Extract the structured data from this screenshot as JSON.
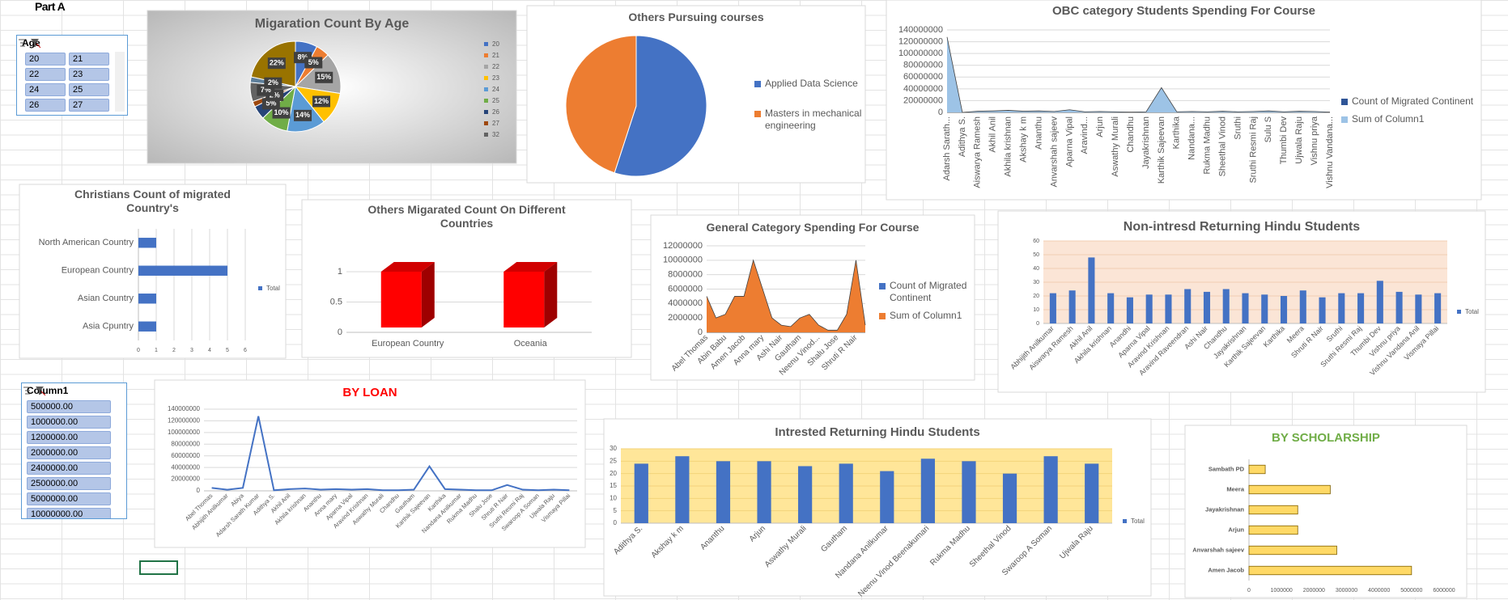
{
  "sheet_label": "Part A",
  "slicers": [
    {
      "title": "Age",
      "items": [
        "20",
        "21",
        "22",
        "23",
        "24",
        "25",
        "26",
        "27"
      ]
    },
    {
      "title": "Column1",
      "items": [
        "500000.00",
        "1000000.00",
        "1200000.00",
        "2000000.00",
        "2400000.00",
        "2500000.00",
        "5000000.00",
        "10000000.00"
      ]
    }
  ],
  "chart_data": [
    {
      "type": "pie",
      "title": "Migaration Count By Age",
      "categories": [
        "20",
        "21",
        "22",
        "23",
        "24",
        "25",
        "26",
        "27",
        "32",
        null,
        null
      ],
      "values": [
        8,
        5,
        15,
        12,
        14,
        10,
        5,
        2,
        7,
        2,
        22
      ],
      "value_labels": [
        "8%",
        "5%",
        "15%",
        "12%",
        "14%",
        "10%",
        "5%",
        "2%",
        "7%",
        "2%",
        "22%"
      ],
      "colors": [
        "#4472c4",
        "#ed7d31",
        "#a5a5a5",
        "#ffc000",
        "#5b9bd5",
        "#70ad47",
        "#264478",
        "#9e480e",
        "#636363",
        "#5e7f9b",
        "#997300"
      ],
      "legend": "right"
    },
    {
      "type": "pie",
      "title": "Others Pursuing courses",
      "categories": [
        "Applied Data Science",
        "Masters in mechanical engineering"
      ],
      "values": [
        55,
        45
      ],
      "colors": [
        "#4472c4",
        "#ed7d31"
      ],
      "legend": "right"
    },
    {
      "type": "area",
      "title": "OBC category Students Spending For Course",
      "categories": [
        "Adarsh Sarath...",
        "Adithya S.",
        "Aiswarya Ramesh",
        "Akhil Anil",
        "Akhila krishnan",
        "Akshay k m",
        "Ananthu",
        "Anvarshah sajeev",
        "Aparna Vipal",
        "Aravind...",
        "Arjun",
        "Aswathy Murali",
        "Chandhu",
        "Jayakrishnan",
        "Karthik Sajeevan",
        "Karthika",
        "Nandana...",
        "Rukma Madhu",
        "Sheethal Vinod",
        "Sruthi",
        "Sruthi Resmi Raj",
        "Sulu S",
        "Thumbi Dev",
        "Ujwala Raju",
        "Vishnu priya",
        "Vishnu Vandana..."
      ],
      "series": [
        {
          "name": "Count of Migrated Continent",
          "color": "#2f5597",
          "values": [
            1,
            1,
            1,
            1,
            1,
            1,
            1,
            1,
            1,
            1,
            1,
            1,
            1,
            1,
            1,
            1,
            1,
            1,
            1,
            1,
            1,
            1,
            1,
            1,
            1,
            1
          ]
        },
        {
          "name": "Sum of Column1",
          "color": "#9dc3e6",
          "values": [
            128000000,
            0,
            2000000,
            2500000,
            3500000,
            2000000,
            2500000,
            1500000,
            4500000,
            1000000,
            1500000,
            1000000,
            500000,
            1000000,
            42000000,
            1000000,
            1500000,
            1000000,
            2000000,
            1000000,
            1500000,
            2500000,
            1000000,
            2000000,
            1500000,
            500000
          ]
        }
      ],
      "ylim": [
        0,
        140000000
      ],
      "yticks": [
        0,
        20000000,
        40000000,
        60000000,
        80000000,
        100000000,
        120000000,
        140000000
      ],
      "grid": true,
      "legend": "right"
    },
    {
      "type": "bar",
      "orientation": "horizontal",
      "title": "Christians Count of migrated Country's",
      "categories": [
        "North American Country",
        "European Country",
        "Asian Country",
        "Asia Cpuntry"
      ],
      "series": [
        {
          "name": "Total",
          "color": "#4472c4",
          "values": [
            1,
            5,
            1,
            1
          ]
        }
      ],
      "xlim": [
        0,
        6
      ],
      "xticks": [
        0,
        1,
        2,
        3,
        4,
        5,
        6
      ],
      "grid": true,
      "legend": "right"
    },
    {
      "type": "bar3d",
      "title": "Others Migarated Count On Different Countries",
      "categories": [
        "European Country",
        "Oceania"
      ],
      "values": [
        1,
        1
      ],
      "color": "#ff0000",
      "ylim": [
        0,
        1.4
      ],
      "yticks": [
        0,
        0.5,
        1
      ],
      "grid": true
    },
    {
      "type": "area",
      "title": "General Category Spending For Course",
      "categories": [
        "Abel Thomas",
        null,
        "Abin Babu",
        null,
        "Amen Jacob",
        null,
        "Anna mary",
        null,
        "Ashi Nair",
        null,
        "Gautham",
        null,
        "Neenu Vinod...",
        null,
        "Shalu Jose",
        null,
        "Shruti R Nair",
        null
      ],
      "series": [
        {
          "name": "Count of Migrated Continent",
          "color": "#4472c4",
          "values": [
            1,
            1,
            1,
            1,
            1,
            1,
            1,
            1,
            1,
            1,
            1,
            1,
            1,
            1,
            1,
            1,
            1,
            1
          ]
        },
        {
          "name": "Sum of Column1",
          "color": "#ed7d31",
          "values": [
            5000000,
            2000000,
            2500000,
            5000000,
            5000000,
            10000000,
            6000000,
            2000000,
            1000000,
            800000,
            2000000,
            2500000,
            1000000,
            300000,
            300000,
            2500000,
            10000000,
            1000000
          ]
        }
      ],
      "ylim": [
        0,
        12000000
      ],
      "yticks": [
        0,
        2000000,
        4000000,
        6000000,
        8000000,
        10000000,
        12000000
      ],
      "grid": true,
      "legend": "right"
    },
    {
      "type": "bar",
      "title": "Non-intresd Returning Hindu Students",
      "categories": [
        "Abhijith Anilkumar",
        "Aiswarya Ramesh",
        "Akhil Anil",
        "Akhila krishnan",
        "Anandhi",
        "Aparna Vipal",
        "Aravind Krishnan",
        "Aravind Raveendran",
        "Ashi Nair",
        "Chandhu",
        "Jayakrishnan",
        "Karthik Sajeevan",
        "Karthika",
        "Meera",
        "Shruti R Nair",
        "Sruthi",
        "Sruthi Resmi Raj",
        "Thumbi Dev",
        "Vishnu priya",
        "Vishnu Vandana Anil",
        "Vismaya Pillai"
      ],
      "series": [
        {
          "name": "Total",
          "color": "#4472c4",
          "values": [
            22,
            24,
            48,
            22,
            19,
            21,
            21,
            25,
            23,
            25,
            22,
            21,
            20,
            24,
            19,
            22,
            22,
            31,
            23,
            21,
            22
          ]
        }
      ],
      "ylim": [
        0,
        60
      ],
      "yticks": [
        0,
        10,
        20,
        30,
        40,
        50,
        60
      ],
      "grid": true,
      "legend": "right",
      "plot_background": "#fbe5d6"
    },
    {
      "type": "line",
      "title": "BY LOAN",
      "title_color": "#ff0000",
      "categories": [
        "Abel Thomas",
        "Abhijith Anilkumar",
        "Abiya",
        "Adarsh Sarath Kumar",
        "Adithya S.",
        "Akhil Anil",
        "Akhila krishnan",
        "Ananthu",
        "Anna mary",
        "Aparna Vipal",
        "Aravind Krishnan",
        "Aswathy Murali",
        "Chandhu",
        "Gautham",
        "Karthik Sajeevan",
        "Karthika",
        "Nandana Anilkumar",
        "Rukma Madhu",
        "Shalu Jose",
        "Shruti R Nair",
        "Sruthi Resmi Raj",
        "Swaroop A Soman",
        "Ujwala Raju",
        "Vismaya Pillai"
      ],
      "values": [
        5000000,
        2000000,
        5000000,
        128000000,
        1000000,
        3000000,
        4000000,
        2000000,
        3000000,
        2000000,
        3000000,
        1000000,
        1000000,
        2000000,
        42000000,
        3000000,
        2000000,
        1000000,
        1000000,
        10000000,
        2000000,
        1000000,
        2000000,
        1000000
      ],
      "color": "#4472c4",
      "ylim": [
        0,
        140000000
      ],
      "yticks": [
        0,
        20000000,
        40000000,
        60000000,
        80000000,
        100000000,
        120000000,
        140000000
      ],
      "grid": true
    },
    {
      "type": "bar",
      "title": "Intrested Returning Hindu Students",
      "categories": [
        "Adithya S.",
        "Akshay k m",
        "Ananthu",
        "Arjun",
        "Aswathy Murali",
        "Gautham",
        "Nandana Anilkumar",
        "Neenu Vinod Beenakumari",
        "Rukma Madhu",
        "Sheethal Vinod",
        "Swaroop A Soman",
        "Ujwala Raju"
      ],
      "series": [
        {
          "name": "Total",
          "color": "#4472c4",
          "values": [
            24,
            27,
            25,
            25,
            23,
            24,
            21,
            26,
            25,
            20,
            27,
            24
          ]
        }
      ],
      "ylim": [
        0,
        30
      ],
      "yticks": [
        0,
        5,
        10,
        15,
        20,
        25,
        30
      ],
      "grid": true,
      "legend": "right",
      "plot_background": "#ffe699"
    },
    {
      "type": "bar",
      "orientation": "horizontal",
      "title": "BY SCHOLARSHIP",
      "title_color": "#70ad47",
      "categories": [
        "Sambath PD",
        "Meera",
        "Jayakrishnan",
        "Arjun",
        "Anvarshah sajeev",
        "Amen Jacob"
      ],
      "values": [
        500000,
        2500000,
        1500000,
        1500000,
        2700000,
        5000000
      ],
      "color": "#ffd966",
      "edge_color": "#7f6000",
      "xlim": [
        0,
        6000000
      ],
      "xticks": [
        0,
        1000000,
        2000000,
        3000000,
        4000000,
        5000000,
        6000000
      ],
      "grid": false
    }
  ]
}
